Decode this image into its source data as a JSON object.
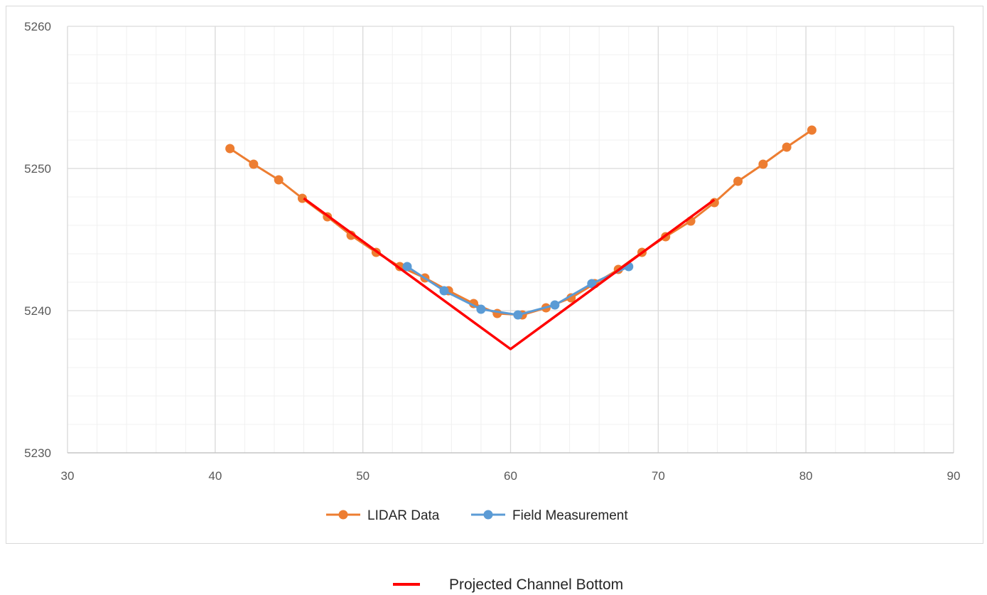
{
  "chart_data": {
    "type": "line",
    "xlim": [
      30,
      90
    ],
    "ylim": [
      5230,
      5260
    ],
    "x_major_step": 10,
    "x_minor_step": 2,
    "y_major_step": 10,
    "y_minor_step": 2,
    "x_ticks": [
      "30",
      "40",
      "50",
      "60",
      "70",
      "80",
      "90"
    ],
    "y_ticks": [
      "5230",
      "5240",
      "5250",
      "5260"
    ],
    "grid": true,
    "legend_position": "bottom",
    "series": [
      {
        "name": "LIDAR Data",
        "color": "#ED7D31",
        "marker": "circle",
        "x": [
          41.0,
          42.6,
          44.3,
          45.9,
          47.6,
          49.2,
          50.9,
          52.5,
          54.2,
          55.8,
          57.5,
          59.1,
          60.8,
          62.4,
          64.1,
          65.7,
          67.3,
          68.9,
          70.5,
          72.2,
          73.8,
          75.4,
          77.1,
          78.7,
          80.4
        ],
        "y": [
          5251.4,
          5250.3,
          5249.2,
          5247.9,
          5246.6,
          5245.3,
          5244.1,
          5243.1,
          5242.3,
          5241.4,
          5240.5,
          5239.8,
          5239.7,
          5240.2,
          5240.9,
          5241.9,
          5242.9,
          5244.1,
          5245.2,
          5246.3,
          5247.6,
          5249.1,
          5250.3,
          5251.5,
          5252.7
        ]
      },
      {
        "name": "Field Measurement",
        "color": "#5B9BD5",
        "marker": "circle",
        "x": [
          53.0,
          55.5,
          58.0,
          60.5,
          63.0,
          65.5,
          68.0
        ],
        "y": [
          5243.1,
          5241.4,
          5240.1,
          5239.7,
          5240.4,
          5241.9,
          5243.1
        ]
      },
      {
        "name": "Projected Channel Bottom",
        "color": "#FF0000",
        "marker": "none",
        "x": [
          46.0,
          60.0,
          73.8
        ],
        "y": [
          5247.9,
          5237.3,
          5247.8
        ]
      }
    ]
  }
}
